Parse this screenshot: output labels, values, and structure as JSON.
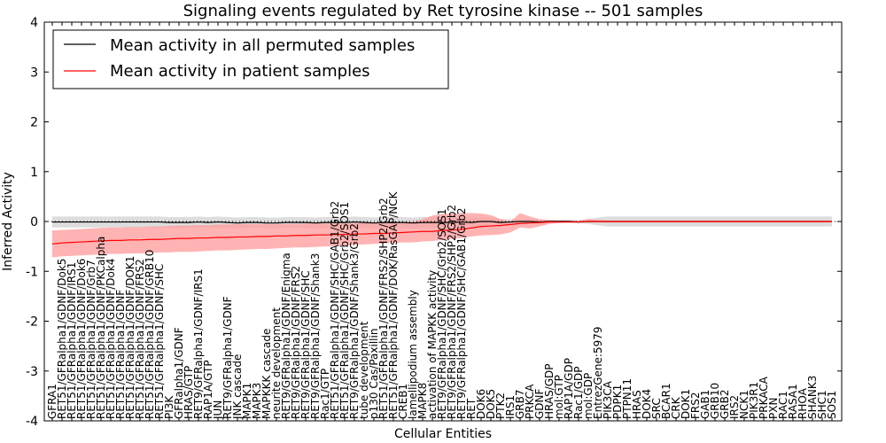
{
  "chart_data": {
    "type": "line",
    "title": "Signaling events regulated by Ret tyrosine kinase -- 501 samples",
    "xlabel": "Cellular Entities",
    "ylabel": "Inferred Activity",
    "ylim": [
      -4,
      4
    ],
    "yticks": [
      -4,
      -3,
      -2,
      -1,
      0,
      1,
      2,
      3,
      4
    ],
    "grid": false,
    "legend_position": "top-left",
    "categories": [
      "GFRA1",
      "RET51/GFRalpha1/GDNF/Dok5",
      "RET51/GFRalpha1/GDNF/IRS1",
      "RET51/GFRalpha1/GDNF/Dok6",
      "RET51/GFRalpha1/GDNF/Grb7",
      "RET51/GFRalpha1/GDNF/PKCalpha",
      "RET51/GFRalpha1/GDNF/Dok4",
      "RET51/GFRalpha1/GDNF",
      "RET51/GFRalpha1/GDNF/DOK1",
      "RET51/GFRalpha1/GDNF/FRS2",
      "RET51/GFRalpha1/GDNF/GRB10",
      "RET51/GFRalpha1/GDNF/SHC",
      "PI3K",
      "GFRalpha1/GDNF",
      "HRAS/GTP",
      "RET9/GFRalpha1/GDNF/IRS1",
      "RAP1A/GTP",
      "JUN",
      "RET9/GFRalpha1/GDNF",
      "JNK cascade",
      "MAPK1",
      "MAPK3",
      "MAPKKK cascade",
      "neurite development",
      "RET9/GFRalpha1/GDNF/Enigma",
      "RET9/GFRalpha1/GDNF/FRS2",
      "RET9/GFRalpha1/GDNF/SHC",
      "RET9/GFRalpha1/GDNF/Shank3",
      "Rac1/GTP",
      "RET51/GFRalpha1/GDNF/SHC/GAB1/Grb2",
      "RET51/GFRalpha1/GDNF/SHC/Grb2/SOS1",
      "RET9/GFRalpha1/GDNF/Shank3/Grb2",
      "tube development",
      "p130 Cas/Paxillin",
      "RET51/GFRalpha1/GDNF/FRS2/SHP2/Grb2",
      "RET51/GFRalpha1/GDNF/DOK/RasGAP/NCK",
      "CREB1",
      "lamellipodium assembly",
      "MAPK8",
      "activation of MAPKK activity",
      "RET9/GFRalpha1/GDNF/SHC/Grb2/SOS1",
      "RET9/GFRalpha1/GDNF/FRS2/SHP2/Grb2",
      "RET9/GFRalpha1/GDNF/SHC/GAB1/Grb2",
      "RET",
      "DOK6",
      "DOK5",
      "PTK2",
      "IRS1",
      "GRB7",
      "PRKCA",
      "GDNF",
      "HRAS/GDP",
      "mol:GTP",
      "RAP1A/GDP",
      "Rac1/GDP",
      "mol:GDP",
      "EntrezGene:5979",
      "PIK3CA",
      "PDPK1",
      "PTPN11",
      "HRAS",
      "DOK4",
      "SRC",
      "BCAR1",
      "CRK",
      "DOK1",
      "FRS2",
      "GAB1",
      "GRB10",
      "GRB2",
      "IRS2",
      "NCK1",
      "PIK3R1",
      "PRKACA",
      "PXN",
      "RAC1",
      "RASA1",
      "RHOA",
      "SHANK3",
      "SHC1",
      "SOS1"
    ],
    "series": [
      {
        "name": "Mean activity in all permuted samples",
        "color": "#000000",
        "band_color": "#bbbbbb",
        "values": [
          -0.01,
          -0.01,
          -0.01,
          -0.01,
          -0.01,
          -0.01,
          -0.01,
          -0.01,
          -0.01,
          -0.01,
          -0.01,
          -0.01,
          -0.02,
          -0.02,
          -0.02,
          -0.01,
          -0.02,
          -0.01,
          -0.02,
          -0.03,
          -0.02,
          -0.02,
          -0.03,
          -0.03,
          -0.02,
          -0.02,
          -0.02,
          -0.03,
          -0.02,
          -0.02,
          -0.02,
          -0.01,
          -0.02,
          -0.03,
          -0.02,
          -0.02,
          -0.02,
          -0.03,
          -0.02,
          -0.02,
          -0.02,
          -0.02,
          -0.01,
          -0.02,
          0.0,
          0.0,
          -0.02,
          -0.01,
          0.0,
          0.0,
          -0.01,
          0.0,
          0.0,
          0.0,
          -0.01,
          0.0,
          0.0,
          0.0,
          0.0,
          0.0,
          0.0,
          0.0,
          0.0,
          0.0,
          0.0,
          0.0,
          0.0,
          0.0,
          0.0,
          0.0,
          0.0,
          0.0,
          0.0,
          0.0,
          0.0,
          0.0,
          0.0,
          0.0,
          0.0,
          0.0,
          0.0
        ],
        "lower": [
          -0.12,
          -0.12,
          -0.12,
          -0.12,
          -0.12,
          -0.12,
          -0.12,
          -0.12,
          -0.12,
          -0.12,
          -0.12,
          -0.12,
          -0.13,
          -0.13,
          -0.13,
          -0.12,
          -0.13,
          -0.12,
          -0.13,
          -0.14,
          -0.13,
          -0.13,
          -0.14,
          -0.14,
          -0.13,
          -0.13,
          -0.13,
          -0.14,
          -0.13,
          -0.13,
          -0.13,
          -0.12,
          -0.13,
          -0.14,
          -0.13,
          -0.13,
          -0.13,
          -0.14,
          -0.13,
          -0.13,
          -0.12,
          -0.12,
          -0.11,
          -0.12,
          -0.08,
          -0.08,
          -0.09,
          -0.07,
          -0.05,
          -0.04,
          -0.05,
          -0.03,
          -0.03,
          -0.03,
          -0.04,
          -0.05,
          -0.08,
          -0.1,
          -0.1,
          -0.1,
          -0.1,
          -0.1,
          -0.1,
          -0.1,
          -0.1,
          -0.1,
          -0.1,
          -0.1,
          -0.1,
          -0.1,
          -0.1,
          -0.1,
          -0.1,
          -0.1,
          -0.1,
          -0.1,
          -0.1,
          -0.1,
          -0.1,
          -0.1,
          -0.1
        ],
        "upper": [
          0.1,
          0.1,
          0.1,
          0.1,
          0.1,
          0.1,
          0.1,
          0.1,
          0.1,
          0.1,
          0.1,
          0.1,
          0.09,
          0.09,
          0.09,
          0.1,
          0.09,
          0.1,
          0.09,
          0.08,
          0.09,
          0.09,
          0.08,
          0.08,
          0.09,
          0.09,
          0.09,
          0.08,
          0.09,
          0.09,
          0.09,
          0.1,
          0.09,
          0.08,
          0.09,
          0.09,
          0.09,
          0.08,
          0.09,
          0.09,
          0.08,
          0.08,
          0.09,
          0.08,
          0.08,
          0.08,
          0.05,
          0.05,
          0.05,
          0.04,
          0.03,
          0.03,
          0.03,
          0.03,
          0.02,
          0.05,
          0.08,
          0.1,
          0.1,
          0.1,
          0.1,
          0.1,
          0.1,
          0.1,
          0.1,
          0.1,
          0.1,
          0.1,
          0.1,
          0.1,
          0.1,
          0.1,
          0.1,
          0.1,
          0.1,
          0.1,
          0.1,
          0.1,
          0.1,
          0.1,
          0.1
        ]
      },
      {
        "name": "Mean activity in patient samples",
        "color": "#ff0000",
        "band_color": "#ff9999",
        "values": [
          -0.45,
          -0.43,
          -0.42,
          -0.41,
          -0.4,
          -0.39,
          -0.38,
          -0.38,
          -0.37,
          -0.37,
          -0.36,
          -0.36,
          -0.35,
          -0.34,
          -0.34,
          -0.33,
          -0.33,
          -0.32,
          -0.32,
          -0.31,
          -0.31,
          -0.3,
          -0.3,
          -0.29,
          -0.29,
          -0.28,
          -0.28,
          -0.27,
          -0.27,
          -0.26,
          -0.26,
          -0.25,
          -0.25,
          -0.24,
          -0.24,
          -0.23,
          -0.22,
          -0.21,
          -0.2,
          -0.2,
          -0.18,
          -0.17,
          -0.16,
          -0.13,
          -0.1,
          -0.09,
          -0.08,
          -0.06,
          -0.04,
          -0.03,
          -0.02,
          -0.01,
          -0.01,
          -0.01,
          -0.01,
          0.0,
          0.0,
          0.0,
          0.0,
          0.0,
          0.0,
          0.0,
          0.0,
          0.0,
          0.0,
          0.0,
          0.0,
          0.0,
          0.0,
          0.0,
          0.0,
          0.0,
          0.0,
          0.0,
          0.0,
          0.0,
          0.0,
          0.0,
          0.0,
          0.0,
          0.0
        ],
        "lower": [
          -0.72,
          -0.7,
          -0.69,
          -0.68,
          -0.67,
          -0.66,
          -0.65,
          -0.65,
          -0.64,
          -0.64,
          -0.63,
          -0.62,
          -0.62,
          -0.61,
          -0.61,
          -0.6,
          -0.59,
          -0.58,
          -0.58,
          -0.57,
          -0.56,
          -0.55,
          -0.55,
          -0.54,
          -0.53,
          -0.52,
          -0.52,
          -0.51,
          -0.5,
          -0.49,
          -0.48,
          -0.47,
          -0.46,
          -0.45,
          -0.44,
          -0.43,
          -0.42,
          -0.42,
          -0.4,
          -0.39,
          -0.37,
          -0.35,
          -0.33,
          -0.3,
          -0.28,
          -0.27,
          -0.26,
          -0.22,
          -0.12,
          -0.14,
          -0.1,
          -0.05,
          -0.03,
          -0.02,
          -0.02,
          -0.02,
          -0.02,
          -0.02,
          -0.02,
          -0.02,
          -0.02,
          -0.02,
          -0.02,
          -0.02,
          -0.02,
          -0.02,
          -0.02,
          -0.02,
          -0.02,
          -0.02,
          -0.02,
          -0.02,
          -0.02,
          -0.02,
          -0.02,
          -0.02,
          -0.02,
          -0.02,
          -0.02,
          -0.02,
          -0.02
        ],
        "upper": [
          -0.18,
          -0.17,
          -0.16,
          -0.15,
          -0.14,
          -0.13,
          -0.12,
          -0.12,
          -0.11,
          -0.11,
          -0.1,
          -0.1,
          -0.09,
          -0.08,
          -0.08,
          -0.07,
          -0.07,
          -0.06,
          -0.06,
          -0.05,
          -0.05,
          -0.05,
          -0.05,
          -0.05,
          -0.05,
          -0.05,
          -0.04,
          -0.04,
          -0.04,
          -0.04,
          -0.04,
          -0.03,
          -0.03,
          -0.03,
          -0.03,
          -0.03,
          -0.02,
          0.0,
          0.05,
          0.12,
          0.15,
          0.16,
          0.17,
          0.17,
          0.16,
          0.13,
          0.05,
          0.0,
          0.17,
          0.1,
          0.05,
          0.03,
          0.02,
          0.02,
          0.02,
          0.05,
          0.03,
          0.02,
          0.02,
          0.02,
          0.02,
          0.02,
          0.02,
          0.02,
          0.02,
          0.02,
          0.02,
          0.02,
          0.02,
          0.02,
          0.02,
          0.02,
          0.02,
          0.02,
          0.02,
          0.02,
          0.02,
          0.02,
          0.02,
          0.02,
          0.02
        ]
      }
    ]
  }
}
